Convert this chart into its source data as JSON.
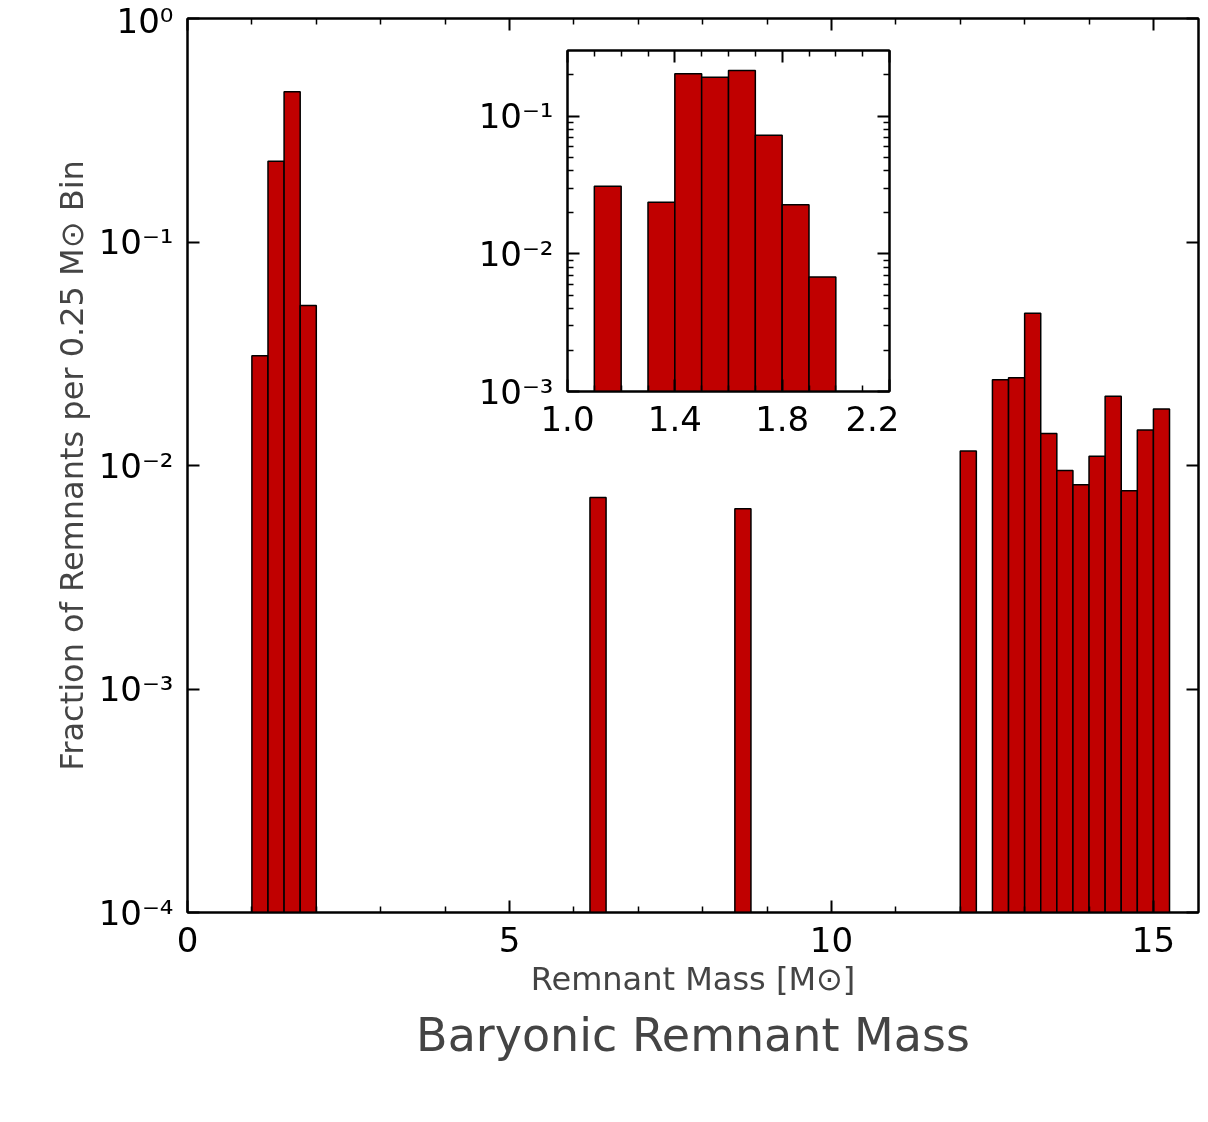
{
  "chart_data": [
    {
      "type": "histogram",
      "title": "Baryonic Remnant Mass",
      "xlabel": "Remnant Mass [M⊙]",
      "ylabel": "Fraction of Remnants per 0.25 M⊙ Bin",
      "log": "y",
      "color": "#c00000",
      "bins": [
        1.0,
        1.25,
        1.5,
        1.75,
        2.0,
        2.25,
        2.5,
        2.75,
        3.0,
        3.25,
        3.5,
        3.75,
        4.0,
        4.25,
        4.5,
        4.75,
        5.0,
        5.25,
        5.5,
        5.75,
        6.0,
        6.25,
        6.5,
        6.75,
        7.0,
        7.25,
        7.5,
        7.75,
        8.0,
        8.25,
        8.5,
        8.75,
        9.0,
        9.25,
        9.5,
        9.75,
        10.0,
        10.25,
        10.5,
        10.75,
        11.0,
        11.25,
        11.5,
        11.75,
        12.0,
        12.25,
        12.5,
        12.75,
        13.0,
        13.25,
        13.5,
        13.75,
        14.0,
        14.25,
        14.5,
        14.75,
        15.0,
        15.25
      ],
      "values": [
        0.031,
        0.23,
        0.47,
        0.052,
        null,
        null,
        null,
        null,
        null,
        null,
        null,
        null,
        null,
        null,
        null,
        null,
        null,
        null,
        null,
        null,
        null,
        0.0072,
        null,
        null,
        null,
        null,
        null,
        null,
        null,
        null,
        0.0064,
        null,
        null,
        null,
        null,
        null,
        null,
        null,
        null,
        null,
        null,
        null,
        null,
        null,
        0.0116,
        null,
        0.0242,
        0.0247,
        0.048,
        0.0139,
        0.0095,
        0.0082,
        0.011,
        0.0204,
        0.0077,
        0.0144,
        0.0179
      ],
      "xlim": [
        0,
        15.7
      ],
      "xticks": [
        0,
        5,
        10,
        15
      ],
      "ylim": [
        0.0001,
        1
      ],
      "yticks": [
        {
          "value": 0.0001,
          "label": "10⁻⁴"
        },
        {
          "value": 0.001,
          "label": "10⁻³"
        },
        {
          "value": 0.01,
          "label": "10⁻²"
        },
        {
          "value": 0.1,
          "label": "10⁻¹"
        },
        {
          "value": 1,
          "label": "10⁰"
        }
      ]
    },
    {
      "type": "histogram",
      "log": "y",
      "color": "#c00000",
      "bins": [
        1.0,
        1.1,
        1.2,
        1.3,
        1.4,
        1.5,
        1.6,
        1.7,
        1.8,
        1.9,
        2.0
      ],
      "values": [
        null,
        0.031,
        null,
        0.0237,
        0.203,
        0.192,
        0.215,
        0.0728,
        0.0227,
        0.0068
      ],
      "xlim": [
        1.0,
        2.2
      ],
      "xticks": [
        {
          "value": 1.0,
          "label": "1.0"
        },
        {
          "value": 1.4,
          "label": "1.4"
        },
        {
          "value": 1.8,
          "label": "1.8"
        },
        {
          "value": 2.2,
          "label": "2.2"
        }
      ],
      "ylim": [
        0.001,
        0.3
      ],
      "yticks": [
        {
          "value": 0.001,
          "label": "10⁻³"
        },
        {
          "value": 0.01,
          "label": "10⁻²"
        },
        {
          "value": 0.1,
          "label": "10⁻¹"
        }
      ]
    }
  ]
}
